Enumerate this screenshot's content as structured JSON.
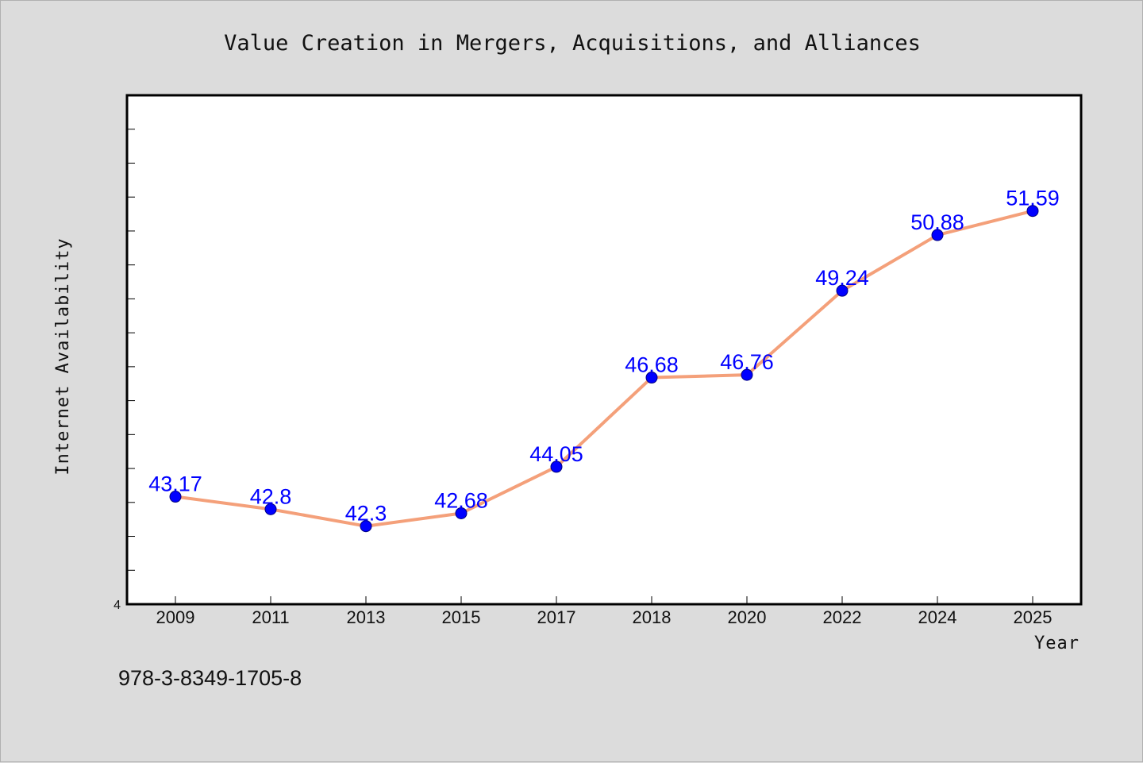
{
  "chart_data": {
    "type": "line",
    "title": "Value Creation in Mergers, Acquisitions, and Alliances",
    "xlabel": "Year",
    "ylabel": "Internet Availability",
    "categories": [
      "2009",
      "2011",
      "2013",
      "2015",
      "2017",
      "2018",
      "2020",
      "2022",
      "2024",
      "2025"
    ],
    "values": [
      43.17,
      42.8,
      42.3,
      42.68,
      44.05,
      46.68,
      46.76,
      49.24,
      50.88,
      51.59
    ],
    "data_labels": [
      "43.17",
      "42.8",
      "42.3",
      "42.68",
      "44.05",
      "46.68",
      "46.76",
      "49.24",
      "50.88",
      "51.59"
    ],
    "y_tick_labels": [
      "4"
    ],
    "ylim": [
      40,
      55
    ],
    "grid": false,
    "legend": "none",
    "colors": {
      "line": "#f4a07a",
      "marker": "#0000ff",
      "data_label": "#0000ff",
      "plot_background": "#ffffff",
      "figure_background": "#dcdcdc"
    }
  },
  "footer": {
    "code": "978-3-8349-1705-8"
  }
}
